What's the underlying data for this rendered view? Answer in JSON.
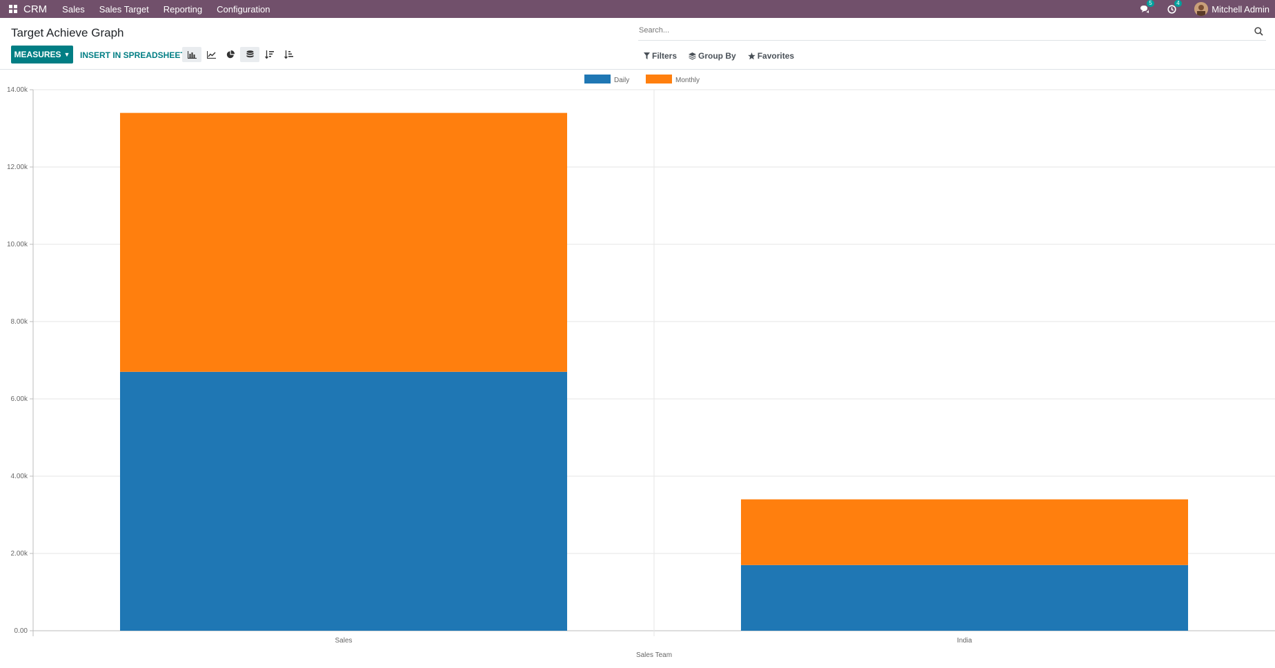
{
  "navbar": {
    "app_name": "CRM",
    "menu": [
      "Sales",
      "Sales Target",
      "Reporting",
      "Configuration"
    ],
    "messages_count": "5",
    "activities_count": "4",
    "user_name": "Mitchell Admin",
    "bg_color": "#71506b"
  },
  "control_panel": {
    "title": "Target Achieve Graph",
    "search_placeholder": "Search...",
    "measures_label": "MEASURES",
    "spreadsheet_label": "INSERT IN SPREADSHEET",
    "filters_label": "Filters",
    "groupby_label": "Group By",
    "favorites_label": "Favorites",
    "accent_color": "#017e84"
  },
  "chart_data": {
    "type": "bar",
    "stacked": true,
    "xlabel": "Sales Team",
    "ylabel": "",
    "ylim": [
      0,
      14000
    ],
    "y_ticks": [
      "0.00",
      "2.00k",
      "4.00k",
      "6.00k",
      "8.00k",
      "10.00k",
      "12.00k",
      "14.00k"
    ],
    "categories": [
      "Sales",
      "India"
    ],
    "series": [
      {
        "name": "Daily",
        "color": "#1f77b4",
        "values": [
          6700,
          1700
        ]
      },
      {
        "name": "Monthly",
        "color": "#ff7f0e",
        "values": [
          6700,
          1700
        ]
      }
    ],
    "grid": true,
    "legend": "top-center"
  }
}
